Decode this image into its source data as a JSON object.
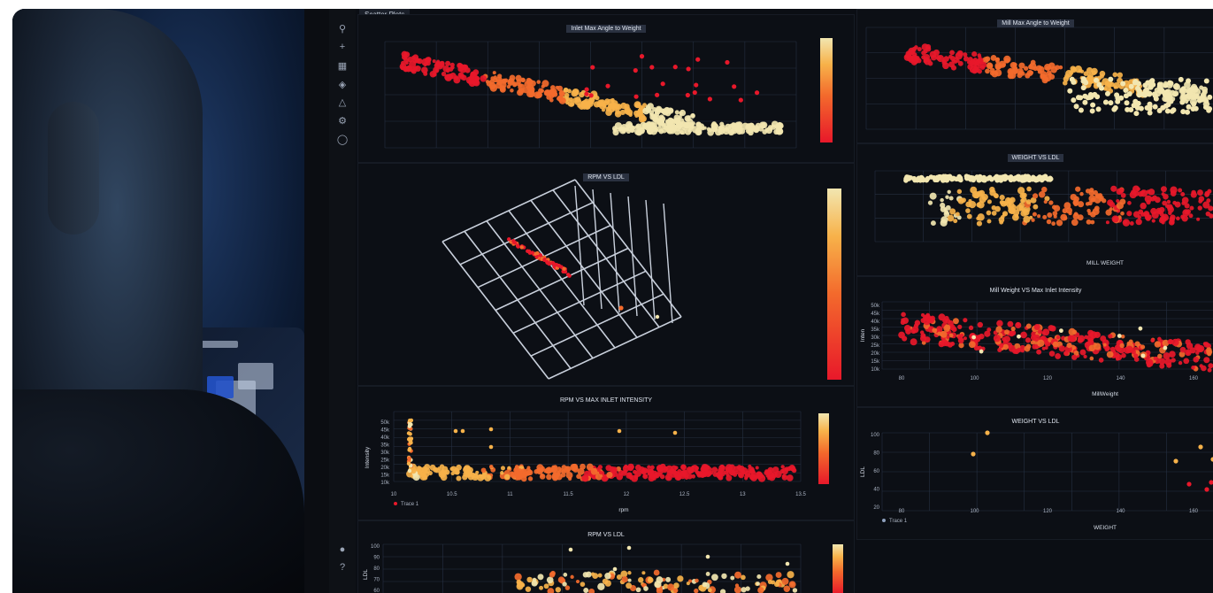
{
  "breadcrumb": "Scatter Plots",
  "panels": {
    "p1": {
      "title": "Inlet Max Angle to Weight"
    },
    "p2": {
      "title": "RPM VS LDL"
    },
    "p3": {
      "title": "RPM VS MAX INLET INTENSITY",
      "xlabel": "rpm",
      "ylabel": "Intensity",
      "legend": "Trace 1",
      "xticks": [
        "10",
        "10.5",
        "11",
        "11.5",
        "12",
        "12.5",
        "13",
        "13.5"
      ],
      "yticks": [
        "50k",
        "45k",
        "40k",
        "35k",
        "30k",
        "25k",
        "20k",
        "15k",
        "10k"
      ]
    },
    "p4": {
      "title": "RPM VS LDL",
      "ylabel": "LDL",
      "yticks": [
        "100",
        "90",
        "80",
        "70",
        "60"
      ]
    },
    "r1": {
      "title": "Mill Max Angle to Weight"
    },
    "r2": {
      "title": "WEIGHT VS LDL",
      "xlabel": "MILL WEIGHT"
    },
    "r3": {
      "title": "Mill Weight VS Max Inlet Intensity",
      "xlabel": "MillWeight",
      "ylabel": "Inten",
      "xticks": [
        "80",
        "100",
        "120",
        "140",
        "160"
      ],
      "yticks": [
        "50k",
        "45k",
        "40k",
        "35k",
        "30k",
        "25k",
        "20k",
        "15k",
        "10k"
      ]
    },
    "r4": {
      "title": "WEIGHT VS LDL",
      "xlabel": "WEIGHT",
      "ylabel": "LDL",
      "legend": "Trace 1",
      "xticks": [
        "80",
        "100",
        "120",
        "140",
        "160"
      ],
      "yticks": [
        "100",
        "80",
        "60",
        "40",
        "20"
      ]
    }
  },
  "colors": {
    "hot": "#e8182a",
    "mid": "#f36a2c",
    "warm": "#f7b24a",
    "cool": "#f2e6b0"
  }
}
